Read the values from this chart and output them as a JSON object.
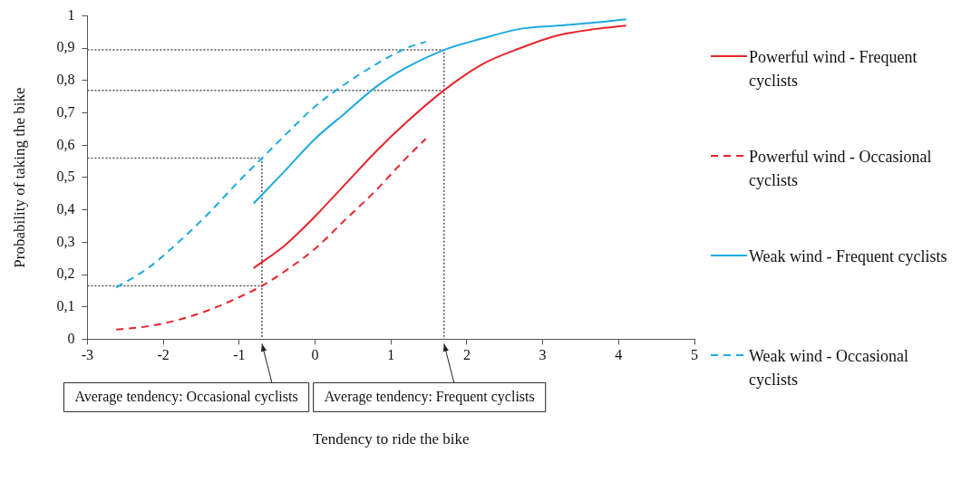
{
  "chart_data": {
    "type": "line",
    "xlabel": "Tendency to ride the bike",
    "ylabel": "Probability of taking the bike",
    "xlim": [
      -3,
      5
    ],
    "xticks": [
      -3,
      -2,
      -1,
      0,
      1,
      2,
      3,
      4,
      5
    ],
    "ylim": [
      0,
      1
    ],
    "yticks": [
      0,
      {
        "value": 0.1,
        "label": "0,1"
      },
      {
        "value": 0.2,
        "label": "0,2"
      },
      {
        "value": 0.3,
        "label": "0,3"
      },
      {
        "value": 0.4,
        "label": "0,4"
      },
      {
        "value": 0.5,
        "label": "0,5"
      },
      {
        "value": 0.6,
        "label": "0,6"
      },
      {
        "value": 0.7,
        "label": "0,7"
      },
      {
        "value": 0.8,
        "label": "0,8"
      },
      {
        "value": 0.9,
        "label": "0,9"
      },
      1
    ],
    "grid": false,
    "legend": "right",
    "marker": "none",
    "series": [
      {
        "name": "Powerful wind - Frequent cyclists",
        "color": "#e8242b",
        "line_style": "solid",
        "x": [
          -0.81,
          -0.4,
          0,
          0.4,
          0.8,
          1.2,
          1.7,
          2.2,
          2.7,
          3.2,
          3.7,
          4.1
        ],
        "values": [
          0.22,
          0.29,
          0.38,
          0.48,
          0.58,
          0.67,
          0.77,
          0.85,
          0.9,
          0.94,
          0.96,
          0.97
        ]
      },
      {
        "name": "Powerful wind - Occasional cyclists",
        "color": "#e8242b",
        "line_style": "dashed",
        "x": [
          -2.62,
          -2.2,
          -1.8,
          -1.4,
          -1.0,
          -0.7,
          -0.4,
          0,
          0.4,
          0.8,
          1.2,
          1.46
        ],
        "values": [
          0.03,
          0.04,
          0.06,
          0.09,
          0.13,
          0.165,
          0.21,
          0.28,
          0.37,
          0.46,
          0.56,
          0.62
        ]
      },
      {
        "name": "Weak wind - Frequent cyclists",
        "color": "#1fa9e1",
        "line_style": "solid",
        "x": [
          -0.81,
          -0.4,
          0,
          0.4,
          0.8,
          1.2,
          1.7,
          2.2,
          2.7,
          3.2,
          3.7,
          4.1
        ],
        "values": [
          0.42,
          0.52,
          0.62,
          0.7,
          0.78,
          0.84,
          0.895,
          0.93,
          0.96,
          0.97,
          0.98,
          0.99
        ]
      },
      {
        "name": "Weak wind - Occasional cyclists",
        "color": "#1fa9e1",
        "line_style": "dashed",
        "x": [
          -2.62,
          -2.2,
          -1.8,
          -1.4,
          -1.0,
          -0.7,
          -0.4,
          0,
          0.4,
          0.8,
          1.2,
          1.46
        ],
        "values": [
          0.16,
          0.22,
          0.3,
          0.39,
          0.49,
          0.56,
          0.63,
          0.72,
          0.79,
          0.85,
          0.9,
          0.92
        ]
      },
      {
        "color": "#555555",
        "line_style": "dotted",
        "x": [
          -3,
          -0.7,
          -0.7
        ],
        "values": [
          0.56,
          0.56,
          0
        ]
      },
      {
        "color": "#555555",
        "line_style": "dotted",
        "x": [
          -3,
          -0.7
        ],
        "values": [
          0.165,
          0.165
        ]
      },
      {
        "color": "#555555",
        "line_style": "dotted",
        "x": [
          -3,
          1.7,
          1.7
        ],
        "values": [
          0.895,
          0.895,
          0
        ]
      },
      {
        "color": "#555555",
        "line_style": "dotted",
        "x": [
          -3,
          1.7
        ],
        "values": [
          0.77,
          0.77
        ]
      }
    ],
    "annotations": [
      {
        "text": "Average tendency: Occasional cyclists",
        "x": -0.7,
        "y": 0
      },
      {
        "text": "Average tendency: Frequent cyclists",
        "x": 1.7,
        "y": 0
      }
    ]
  }
}
